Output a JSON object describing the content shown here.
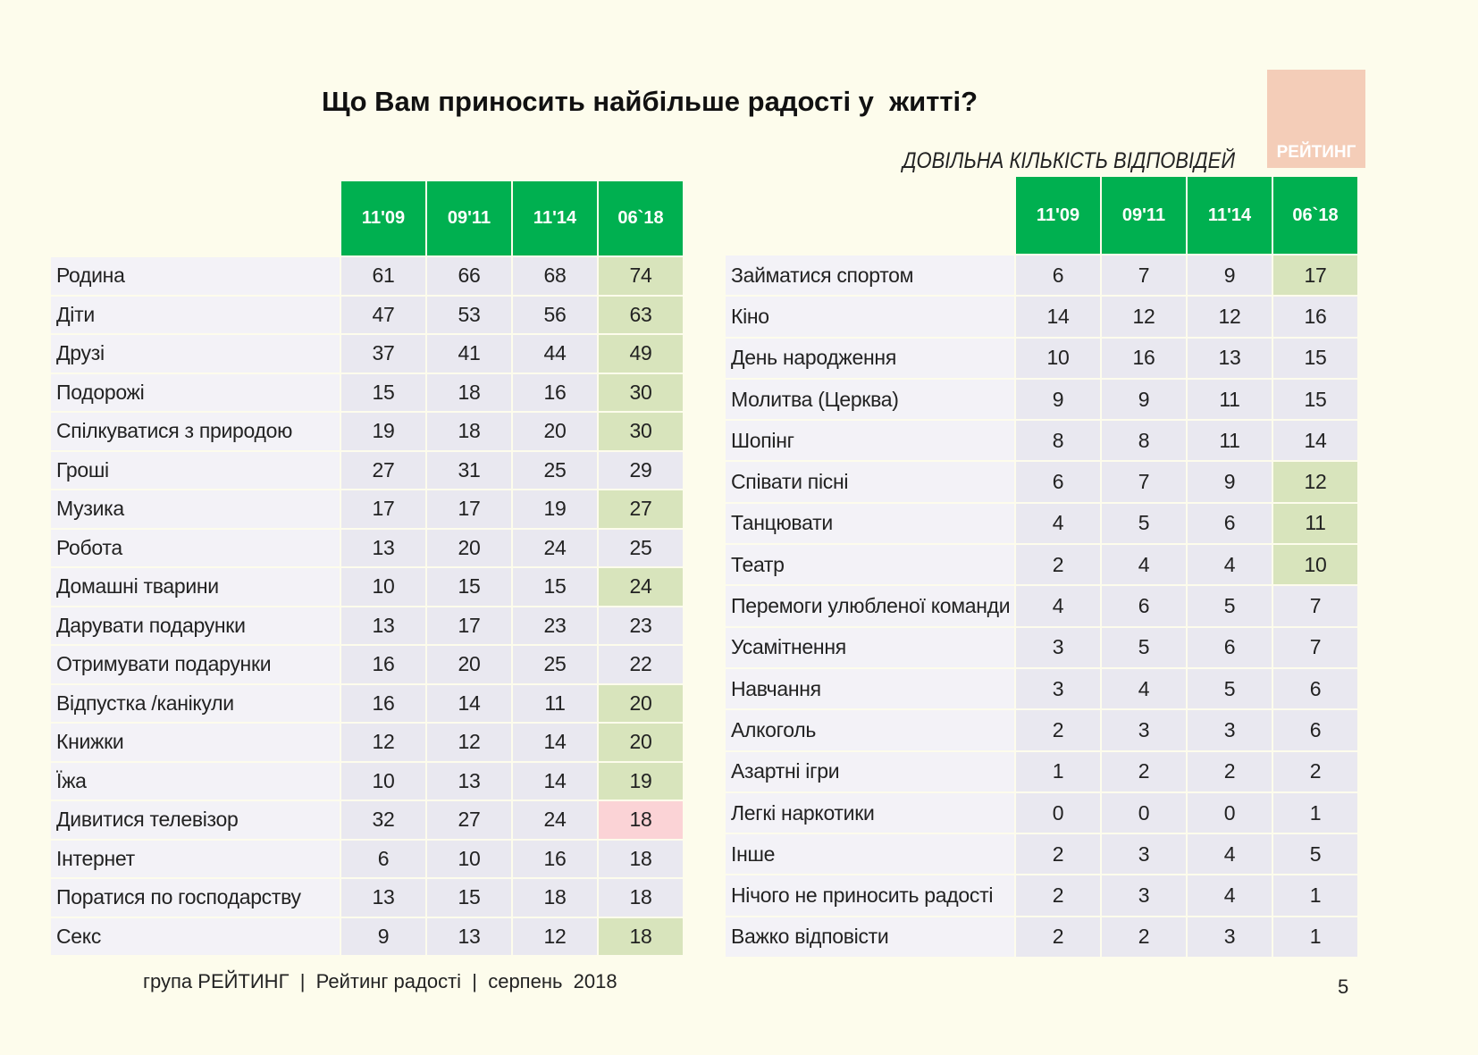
{
  "title": "Що Вам приносить найбільше радості у  житті?",
  "subtitle": "ДОВІЛЬНА КІЛЬКІСТЬ ВІДПОВІДЕЙ",
  "logo": "РЕЙТИНГ",
  "tables": [
    {
      "columns": [
        "11'09",
        "09'11",
        "11'14",
        "06`18"
      ],
      "rows": [
        {
          "label": "Родина",
          "values": [
            61,
            66,
            68,
            74
          ],
          "highlight": "#d8e4bc"
        },
        {
          "label": "Діти",
          "values": [
            47,
            53,
            56,
            63
          ],
          "highlight": "#d8e4bc"
        },
        {
          "label": "Друзі",
          "values": [
            37,
            41,
            44,
            49
          ],
          "highlight": "#d8e4bc"
        },
        {
          "label": "Подорожі",
          "values": [
            15,
            18,
            16,
            30
          ],
          "highlight": "#d8e4bc"
        },
        {
          "label": "Спілкуватися з природою",
          "values": [
            19,
            18,
            20,
            30
          ],
          "highlight": "#d8e4bc"
        },
        {
          "label": "Гроші",
          "values": [
            27,
            31,
            25,
            29
          ]
        },
        {
          "label": "Музика",
          "values": [
            17,
            17,
            19,
            27
          ],
          "highlight": "#d8e4bc"
        },
        {
          "label": "Робота",
          "values": [
            13,
            20,
            24,
            25
          ]
        },
        {
          "label": "Домашні тварини",
          "values": [
            10,
            15,
            15,
            24
          ],
          "highlight": "#d8e4bc"
        },
        {
          "label": "Дарувати подарунки",
          "values": [
            13,
            17,
            23,
            23
          ]
        },
        {
          "label": "Отримувати подарунки",
          "values": [
            16,
            20,
            25,
            22
          ]
        },
        {
          "label": "Відпустка /канікули",
          "values": [
            16,
            14,
            11,
            20
          ],
          "highlight": "#d8e4bc"
        },
        {
          "label": "Книжки",
          "values": [
            12,
            12,
            14,
            20
          ],
          "highlight": "#d8e4bc"
        },
        {
          "label": "Їжа",
          "values": [
            10,
            13,
            14,
            19
          ],
          "highlight": "#d8e4bc"
        },
        {
          "label": "Дивитися телевізор",
          "values": [
            32,
            27,
            24,
            18
          ],
          "highlight": "#fbd3d6"
        },
        {
          "label": "Інтернет",
          "values": [
            6,
            10,
            16,
            18
          ]
        },
        {
          "label": "Поратися по господарству",
          "values": [
            13,
            15,
            18,
            18
          ]
        },
        {
          "label": "Секс",
          "values": [
            9,
            13,
            12,
            18
          ],
          "highlight": "#d8e4bc"
        }
      ]
    },
    {
      "columns": [
        "11'09",
        "09'11",
        "11'14",
        "06`18"
      ],
      "rows": [
        {
          "label": "Займатися спортом",
          "values": [
            6,
            7,
            9,
            17
          ],
          "highlight": "#d8e4bc"
        },
        {
          "label": "Кіно",
          "values": [
            14,
            12,
            12,
            16
          ]
        },
        {
          "label": "День народження",
          "values": [
            10,
            16,
            13,
            15
          ]
        },
        {
          "label": "Молитва (Церква)",
          "values": [
            9,
            9,
            11,
            15
          ]
        },
        {
          "label": "Шопінг",
          "values": [
            8,
            8,
            11,
            14
          ]
        },
        {
          "label": "Співати пісні",
          "values": [
            6,
            7,
            9,
            12
          ],
          "highlight": "#d8e4bc"
        },
        {
          "label": "Танцювати",
          "values": [
            4,
            5,
            6,
            11
          ],
          "highlight": "#d8e4bc"
        },
        {
          "label": "Театр",
          "values": [
            2,
            4,
            4,
            10
          ],
          "highlight": "#d8e4bc"
        },
        {
          "label": "Перемоги улюбленої команди",
          "values": [
            4,
            6,
            5,
            7
          ]
        },
        {
          "label": "Усамітнення",
          "values": [
            3,
            5,
            6,
            7
          ]
        },
        {
          "label": "Навчання",
          "values": [
            3,
            4,
            5,
            6
          ]
        },
        {
          "label": "Алкоголь",
          "values": [
            2,
            3,
            3,
            6
          ]
        },
        {
          "label": "Азартні ігри",
          "values": [
            1,
            2,
            2,
            2
          ]
        },
        {
          "label": "Легкі наркотики",
          "values": [
            0,
            0,
            0,
            1
          ]
        },
        {
          "label": "Інше",
          "values": [
            2,
            3,
            4,
            5
          ]
        },
        {
          "label": "Нічого не приносить радості",
          "values": [
            2,
            3,
            4,
            1
          ]
        },
        {
          "label": "Важко відповісти",
          "values": [
            2,
            2,
            3,
            1
          ]
        }
      ]
    }
  ],
  "footer": "група РЕЙТИНГ  |  Рейтинг радості  |  серпень  2018",
  "page_number": "5"
}
